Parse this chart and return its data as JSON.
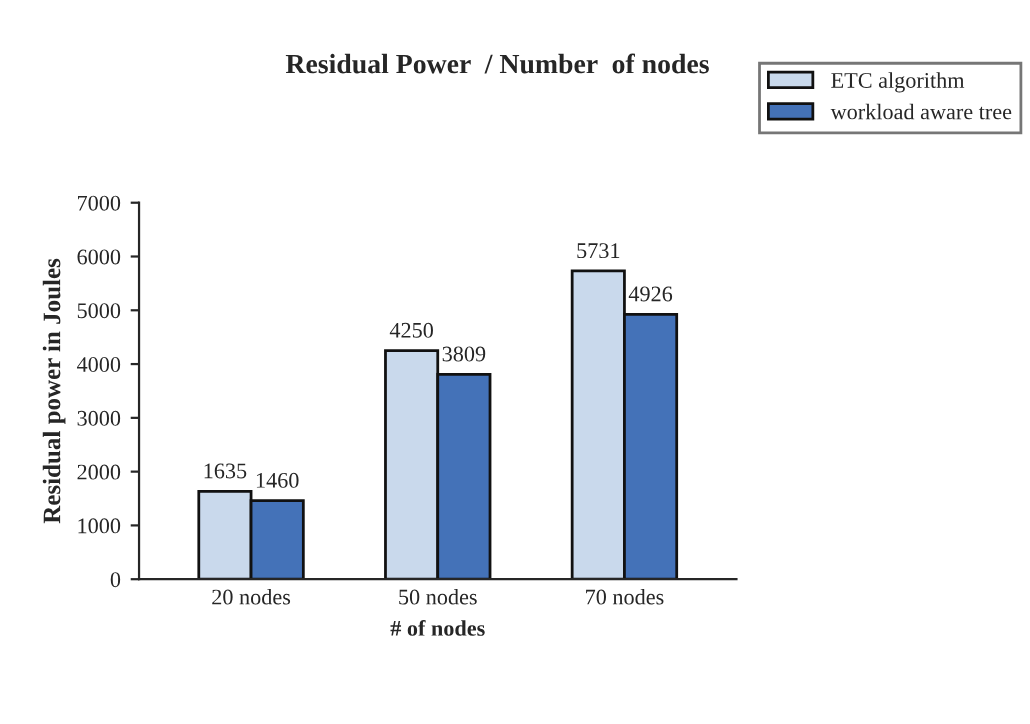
{
  "chart_data": {
    "type": "bar",
    "title": "Residual Power  / Number  of nodes",
    "xlabel": "# of nodes",
    "ylabel": "Residual power in Joules",
    "categories": [
      "20 nodes",
      "50 nodes",
      "70 nodes"
    ],
    "series": [
      {
        "name": "ETC algorithm",
        "color": "#c9d9ec",
        "values": [
          1635,
          4250,
          5731
        ]
      },
      {
        "name": "workload aware tree",
        "color": "#4472b8",
        "values": [
          1460,
          3809,
          4926
        ]
      }
    ],
    "ylim": [
      0,
      7000
    ],
    "yticks": [
      0,
      1000,
      2000,
      3000,
      4000,
      5000,
      6000,
      7000
    ],
    "data_labels": true,
    "grid": false,
    "legend": "top right"
  }
}
